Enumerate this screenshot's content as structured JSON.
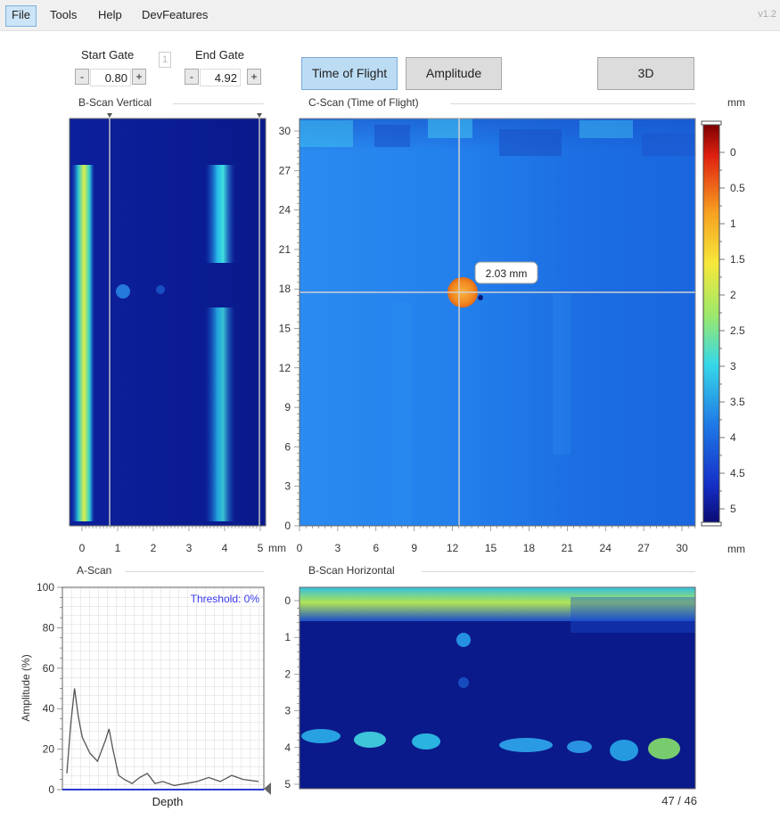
{
  "menu": {
    "items": [
      "File",
      "Tools",
      "Help",
      "DevFeatures"
    ],
    "version": "v1.2"
  },
  "gates": {
    "start_label": "Start Gate",
    "start_value": "0.80",
    "end_label": "End Gate",
    "end_value": "4.92",
    "gate_index": "1",
    "minus": "-",
    "plus": "+"
  },
  "modes": {
    "tof_label": "Time of Flight",
    "amp_label": "Amplitude",
    "threed_label": "3D"
  },
  "bscan_vertical": {
    "title": "B-Scan Vertical",
    "x_ticks": [
      "0",
      "1",
      "2",
      "3",
      "4",
      "5"
    ],
    "x_unit": "mm",
    "cursor_x": 0.8
  },
  "cscan": {
    "title": "C-Scan (Time of Flight)",
    "y_ticks": [
      "0",
      "3",
      "6",
      "9",
      "12",
      "15",
      "18",
      "21",
      "24",
      "27",
      "30"
    ],
    "x_ticks": [
      "0",
      "3",
      "6",
      "9",
      "12",
      "15",
      "18",
      "21",
      "24",
      "27",
      "30"
    ],
    "x_unit": "mm",
    "cursor_x": 12.5,
    "cursor_y": 17.8,
    "tooltip": "2.03 mm"
  },
  "colorbar": {
    "unit": "mm",
    "ticks": [
      "0",
      "0.5",
      "1",
      "1.5",
      "2",
      "2.5",
      "3",
      "3.5",
      "4",
      "4.5",
      "5"
    ],
    "x_unit": "mm"
  },
  "ascan": {
    "title": "A-Scan",
    "ylabel": "Amplitude (%)",
    "xlabel": "Depth",
    "y_ticks": [
      "0",
      "20",
      "40",
      "60",
      "80",
      "100"
    ],
    "threshold": "Threshold: 0%",
    "chart_data": {
      "type": "line",
      "x": [
        0,
        0.1,
        0.2,
        0.3,
        0.4,
        0.6,
        0.8,
        1.0,
        1.1,
        1.2,
        1.35,
        1.5,
        1.7,
        1.9,
        2.1,
        2.3,
        2.5,
        2.8,
        3.1,
        3.4,
        3.7,
        4.0,
        4.3,
        4.6,
        5.0
      ],
      "y": [
        8,
        32,
        50,
        36,
        26,
        18,
        14,
        24,
        30,
        20,
        7,
        5,
        3,
        6,
        8,
        3,
        4,
        2,
        3,
        4,
        6,
        4,
        7,
        5,
        4
      ],
      "ylim": [
        0,
        100
      ]
    }
  },
  "bscan_horizontal": {
    "title": "B-Scan Horizontal",
    "y_ticks": [
      "0",
      "1",
      "2",
      "3",
      "4",
      "5"
    ],
    "frame": "47 / 46"
  }
}
